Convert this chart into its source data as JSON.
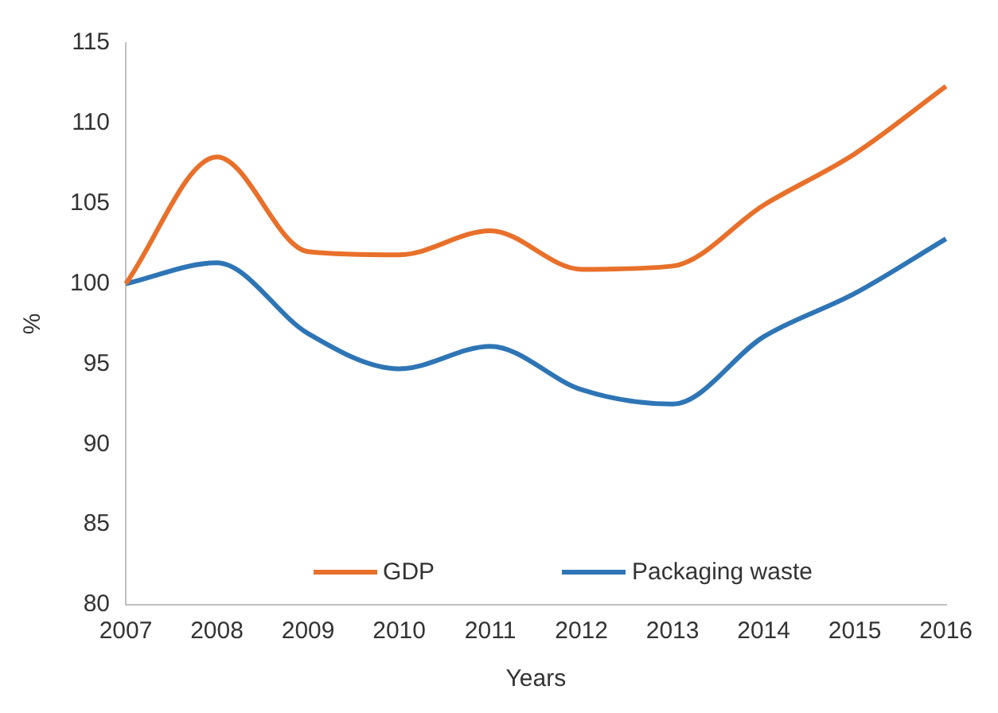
{
  "chart_data": {
    "type": "line",
    "xlabel": "Years",
    "ylabel": "%",
    "categories": [
      "2007",
      "2008",
      "2009",
      "2010",
      "2011",
      "2012",
      "2013",
      "2014",
      "2015",
      "2016"
    ],
    "series": [
      {
        "name": "GDP",
        "color": "#e8702a",
        "values": [
          100,
          107.9,
          102.0,
          101.8,
          103.3,
          100.9,
          101.1,
          104.9,
          108.1,
          112.3
        ]
      },
      {
        "name": "Packaging waste",
        "color": "#2e75b6",
        "values": [
          100,
          101.3,
          96.9,
          94.7,
          96.1,
          93.4,
          92.5,
          96.7,
          99.4,
          102.8
        ]
      }
    ],
    "ylim": [
      80,
      115
    ],
    "yticks": [
      80,
      85,
      90,
      95,
      100,
      105,
      110,
      115
    ],
    "grid": false,
    "legend": "bottom",
    "marker": "none",
    "line_style": "solid"
  }
}
